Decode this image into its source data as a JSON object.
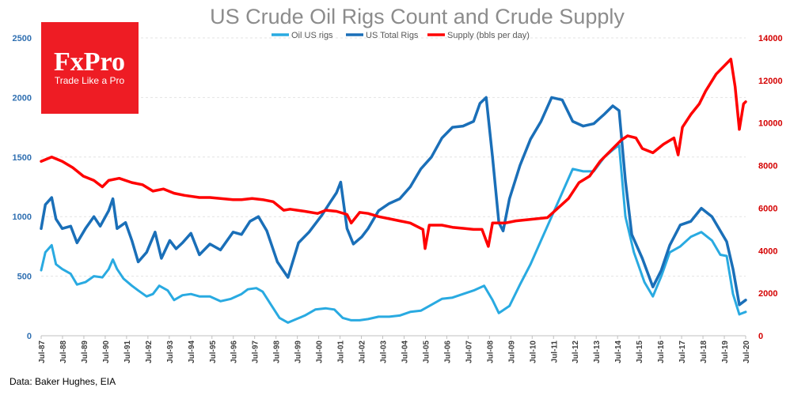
{
  "chart_data": {
    "type": "line",
    "title": "US Crude Oil Rigs Count and Crude Supply",
    "categories": [
      "Jul-87",
      "Jul-88",
      "Jul-89",
      "Jul-90",
      "Jul-91",
      "Jul-92",
      "Jul-93",
      "Jul-94",
      "Jul-95",
      "Jul-96",
      "Jul-97",
      "Jul-98",
      "Jul-99",
      "Jul-00",
      "Jul-01",
      "Jul-02",
      "Jul-03",
      "Jul-04",
      "Jul-05",
      "Jul-06",
      "Jul-07",
      "Jul-08",
      "Jul-09",
      "Jul-10",
      "Jul-11",
      "Jul-12",
      "Jul-13",
      "Jul-14",
      "Jul-15",
      "Jul-16",
      "Jul-17",
      "Jul-18",
      "Jul-19",
      "Jul-20"
    ],
    "y_left": {
      "ticks": [
        0,
        500,
        1000,
        1500,
        2000,
        2500
      ],
      "ylim": [
        0,
        2500
      ],
      "color": "#2f6fb1"
    },
    "y_right": {
      "ticks": [
        0,
        2000,
        4000,
        6000,
        8000,
        10000,
        12000,
        14000
      ],
      "ylim": [
        0,
        14000
      ],
      "color": "#d40000"
    },
    "grid": true,
    "legend_position": "top-center",
    "series": [
      {
        "name": "Oil US rigs",
        "axis": "left",
        "color": "#29aae1",
        "points": [
          [
            1987.5,
            550
          ],
          [
            1987.7,
            700
          ],
          [
            1988.0,
            760
          ],
          [
            1988.2,
            600
          ],
          [
            1988.5,
            560
          ],
          [
            1988.9,
            520
          ],
          [
            1989.2,
            430
          ],
          [
            1989.6,
            450
          ],
          [
            1990.0,
            500
          ],
          [
            1990.4,
            490
          ],
          [
            1990.7,
            560
          ],
          [
            1990.9,
            640
          ],
          [
            1991.1,
            560
          ],
          [
            1991.4,
            480
          ],
          [
            1991.8,
            420
          ],
          [
            1992.1,
            380
          ],
          [
            1992.5,
            330
          ],
          [
            1992.8,
            350
          ],
          [
            1993.1,
            420
          ],
          [
            1993.5,
            380
          ],
          [
            1993.8,
            300
          ],
          [
            1994.2,
            340
          ],
          [
            1994.6,
            350
          ],
          [
            1995.0,
            330
          ],
          [
            1995.5,
            330
          ],
          [
            1996.0,
            290
          ],
          [
            1996.5,
            310
          ],
          [
            1997.0,
            350
          ],
          [
            1997.3,
            390
          ],
          [
            1997.7,
            400
          ],
          [
            1998.0,
            370
          ],
          [
            1998.4,
            260
          ],
          [
            1998.8,
            150
          ],
          [
            1999.2,
            110
          ],
          [
            1999.6,
            140
          ],
          [
            2000.0,
            170
          ],
          [
            2000.5,
            220
          ],
          [
            2001.0,
            230
          ],
          [
            2001.4,
            220
          ],
          [
            2001.8,
            150
          ],
          [
            2002.2,
            130
          ],
          [
            2002.6,
            130
          ],
          [
            2003.0,
            140
          ],
          [
            2003.5,
            160
          ],
          [
            2004.0,
            160
          ],
          [
            2004.5,
            170
          ],
          [
            2005.0,
            200
          ],
          [
            2005.5,
            210
          ],
          [
            2006.0,
            260
          ],
          [
            2006.5,
            310
          ],
          [
            2007.0,
            320
          ],
          [
            2007.5,
            350
          ],
          [
            2008.0,
            380
          ],
          [
            2008.5,
            420
          ],
          [
            2008.9,
            300
          ],
          [
            2009.2,
            190
          ],
          [
            2009.7,
            250
          ],
          [
            2010.2,
            430
          ],
          [
            2010.7,
            600
          ],
          [
            2011.2,
            800
          ],
          [
            2011.7,
            1000
          ],
          [
            2012.2,
            1200
          ],
          [
            2012.7,
            1400
          ],
          [
            2013.2,
            1380
          ],
          [
            2013.7,
            1380
          ],
          [
            2014.2,
            1500
          ],
          [
            2014.6,
            1560
          ],
          [
            2014.9,
            1600
          ],
          [
            2015.2,
            1000
          ],
          [
            2015.6,
            700
          ],
          [
            2016.1,
            450
          ],
          [
            2016.5,
            330
          ],
          [
            2016.9,
            500
          ],
          [
            2017.3,
            700
          ],
          [
            2017.8,
            750
          ],
          [
            2018.3,
            830
          ],
          [
            2018.8,
            870
          ],
          [
            2019.3,
            800
          ],
          [
            2019.7,
            680
          ],
          [
            2020.0,
            670
          ],
          [
            2020.3,
            350
          ],
          [
            2020.6,
            180
          ],
          [
            2020.9,
            200
          ]
        ]
      },
      {
        "name": "US Total Rigs",
        "axis": "left",
        "color": "#1a6fb8",
        "points": [
          [
            1987.5,
            900
          ],
          [
            1987.7,
            1100
          ],
          [
            1988.0,
            1160
          ],
          [
            1988.2,
            980
          ],
          [
            1988.5,
            900
          ],
          [
            1988.9,
            920
          ],
          [
            1989.2,
            780
          ],
          [
            1989.6,
            900
          ],
          [
            1990.0,
            1000
          ],
          [
            1990.3,
            920
          ],
          [
            1990.7,
            1050
          ],
          [
            1990.9,
            1150
          ],
          [
            1991.1,
            900
          ],
          [
            1991.5,
            950
          ],
          [
            1991.8,
            800
          ],
          [
            1992.1,
            620
          ],
          [
            1992.5,
            700
          ],
          [
            1992.9,
            870
          ],
          [
            1993.2,
            650
          ],
          [
            1993.6,
            800
          ],
          [
            1993.9,
            730
          ],
          [
            1994.2,
            780
          ],
          [
            1994.6,
            860
          ],
          [
            1995.0,
            680
          ],
          [
            1995.5,
            770
          ],
          [
            1996.0,
            720
          ],
          [
            1996.6,
            870
          ],
          [
            1997.0,
            850
          ],
          [
            1997.4,
            960
          ],
          [
            1997.8,
            1000
          ],
          [
            1998.2,
            880
          ],
          [
            1998.7,
            620
          ],
          [
            1999.2,
            490
          ],
          [
            1999.7,
            780
          ],
          [
            2000.2,
            870
          ],
          [
            2000.8,
            1010
          ],
          [
            2001.2,
            1120
          ],
          [
            2001.5,
            1200
          ],
          [
            2001.7,
            1290
          ],
          [
            2002.0,
            900
          ],
          [
            2002.3,
            770
          ],
          [
            2002.7,
            830
          ],
          [
            2003.0,
            900
          ],
          [
            2003.5,
            1050
          ],
          [
            2004.0,
            1110
          ],
          [
            2004.5,
            1150
          ],
          [
            2005.0,
            1250
          ],
          [
            2005.5,
            1400
          ],
          [
            2006.0,
            1500
          ],
          [
            2006.5,
            1660
          ],
          [
            2007.0,
            1750
          ],
          [
            2007.5,
            1760
          ],
          [
            2008.0,
            1800
          ],
          [
            2008.3,
            1950
          ],
          [
            2008.6,
            2000
          ],
          [
            2008.9,
            1500
          ],
          [
            2009.2,
            950
          ],
          [
            2009.4,
            880
          ],
          [
            2009.7,
            1150
          ],
          [
            2010.2,
            1430
          ],
          [
            2010.7,
            1650
          ],
          [
            2011.2,
            1800
          ],
          [
            2011.7,
            2000
          ],
          [
            2012.2,
            1980
          ],
          [
            2012.7,
            1800
          ],
          [
            2013.2,
            1760
          ],
          [
            2013.7,
            1780
          ],
          [
            2014.2,
            1860
          ],
          [
            2014.6,
            1930
          ],
          [
            2014.9,
            1890
          ],
          [
            2015.2,
            1300
          ],
          [
            2015.5,
            850
          ],
          [
            2016.0,
            650
          ],
          [
            2016.5,
            410
          ],
          [
            2016.9,
            550
          ],
          [
            2017.3,
            760
          ],
          [
            2017.8,
            930
          ],
          [
            2018.3,
            960
          ],
          [
            2018.8,
            1070
          ],
          [
            2019.3,
            1000
          ],
          [
            2019.7,
            880
          ],
          [
            2020.0,
            790
          ],
          [
            2020.3,
            560
          ],
          [
            2020.6,
            260
          ],
          [
            2020.9,
            300
          ]
        ]
      },
      {
        "name": "Supply (bbls per day)",
        "axis": "right",
        "color": "#ff0000",
        "points": [
          [
            1987.5,
            8200
          ],
          [
            1988.0,
            8400
          ],
          [
            1988.5,
            8200
          ],
          [
            1989.0,
            7900
          ],
          [
            1989.5,
            7500
          ],
          [
            1990.0,
            7300
          ],
          [
            1990.4,
            7000
          ],
          [
            1990.7,
            7300
          ],
          [
            1991.2,
            7400
          ],
          [
            1991.8,
            7200
          ],
          [
            1992.3,
            7100
          ],
          [
            1992.8,
            6800
          ],
          [
            1993.3,
            6900
          ],
          [
            1993.8,
            6700
          ],
          [
            1994.3,
            6600
          ],
          [
            1995.0,
            6500
          ],
          [
            1995.5,
            6500
          ],
          [
            1996.0,
            6450
          ],
          [
            1996.6,
            6400
          ],
          [
            1997.0,
            6400
          ],
          [
            1997.5,
            6450
          ],
          [
            1998.0,
            6400
          ],
          [
            1998.5,
            6300
          ],
          [
            1999.0,
            5900
          ],
          [
            1999.3,
            5950
          ],
          [
            2000.0,
            5850
          ],
          [
            2000.6,
            5750
          ],
          [
            2001.0,
            5900
          ],
          [
            2001.5,
            5850
          ],
          [
            2002.0,
            5700
          ],
          [
            2002.2,
            5300
          ],
          [
            2002.6,
            5800
          ],
          [
            2003.0,
            5750
          ],
          [
            2003.5,
            5600
          ],
          [
            2004.0,
            5500
          ],
          [
            2004.5,
            5400
          ],
          [
            2005.0,
            5300
          ],
          [
            2005.6,
            5000
          ],
          [
            2005.7,
            4100
          ],
          [
            2005.9,
            5200
          ],
          [
            2006.5,
            5200
          ],
          [
            2007.0,
            5100
          ],
          [
            2007.5,
            5050
          ],
          [
            2008.0,
            5000
          ],
          [
            2008.4,
            5000
          ],
          [
            2008.7,
            4200
          ],
          [
            2008.9,
            5300
          ],
          [
            2009.5,
            5300
          ],
          [
            2010.0,
            5400
          ],
          [
            2010.5,
            5450
          ],
          [
            2011.0,
            5500
          ],
          [
            2011.5,
            5550
          ],
          [
            2012.0,
            6000
          ],
          [
            2012.5,
            6450
          ],
          [
            2013.0,
            7200
          ],
          [
            2013.5,
            7500
          ],
          [
            2014.0,
            8200
          ],
          [
            2014.5,
            8700
          ],
          [
            2015.0,
            9200
          ],
          [
            2015.3,
            9400
          ],
          [
            2015.7,
            9300
          ],
          [
            2016.0,
            8800
          ],
          [
            2016.5,
            8600
          ],
          [
            2017.0,
            9000
          ],
          [
            2017.5,
            9300
          ],
          [
            2017.7,
            8500
          ],
          [
            2017.9,
            9800
          ],
          [
            2018.3,
            10400
          ],
          [
            2018.7,
            10900
          ],
          [
            2019.0,
            11500
          ],
          [
            2019.5,
            12300
          ],
          [
            2019.8,
            12600
          ],
          [
            2020.2,
            13000
          ],
          [
            2020.4,
            11700
          ],
          [
            2020.6,
            9700
          ],
          [
            2020.8,
            10900
          ],
          [
            2020.9,
            11000
          ]
        ]
      }
    ]
  },
  "logo": {
    "name": "FxPro",
    "tagline": "Trade Like a Pro"
  },
  "source_note": "Data: Baker Hughes, EIA"
}
